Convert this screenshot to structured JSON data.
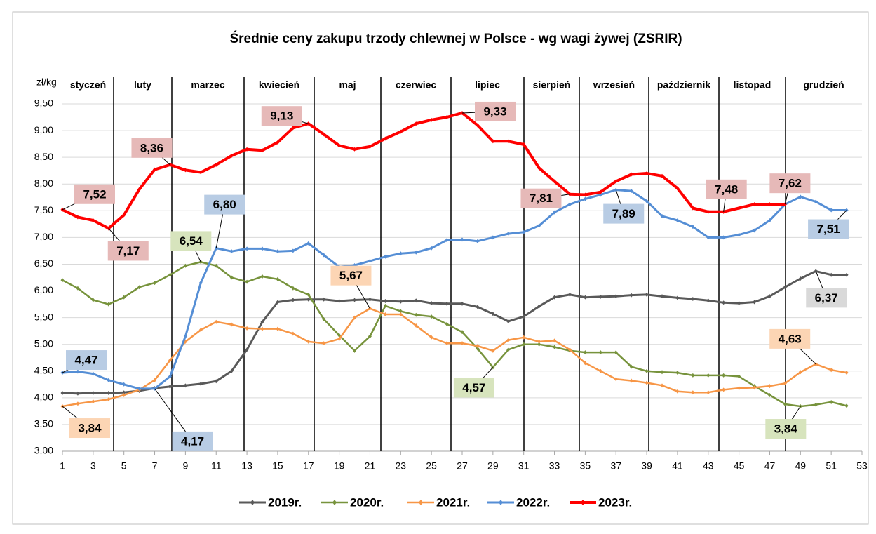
{
  "chart_data": {
    "type": "line",
    "title": "Średnie ceny zakupu trzody chlewnej w Polsce - wg wagi żywej (ZSRIR)",
    "y_label": "zł/kg",
    "months": [
      "styczeń",
      "luty",
      "marzec",
      "kwiecień",
      "maj",
      "czerwiec",
      "lipiec",
      "sierpień",
      "wrzesień",
      "październik",
      "listopad",
      "grudzień"
    ],
    "x": [
      1,
      2,
      3,
      4,
      5,
      6,
      7,
      8,
      9,
      10,
      11,
      12,
      13,
      14,
      15,
      16,
      17,
      18,
      19,
      20,
      21,
      22,
      23,
      24,
      25,
      26,
      27,
      28,
      29,
      30,
      31,
      32,
      33,
      34,
      35,
      36,
      37,
      38,
      39,
      40,
      41,
      42,
      43,
      44,
      45,
      46,
      47,
      48,
      49,
      50,
      51,
      52
    ],
    "xlim": [
      1,
      53
    ],
    "xticks": [
      1,
      3,
      5,
      7,
      9,
      11,
      13,
      15,
      17,
      19,
      21,
      23,
      25,
      27,
      29,
      31,
      33,
      35,
      37,
      39,
      41,
      43,
      45,
      47,
      49,
      51,
      53
    ],
    "ylim": [
      3,
      9.5
    ],
    "yticks": [
      {
        "value": 3,
        "label": "3,00"
      },
      {
        "value": 3.5,
        "label": "3,50"
      },
      {
        "value": 4,
        "label": "4,00"
      },
      {
        "value": 4.5,
        "label": "4,50"
      },
      {
        "value": 5,
        "label": "5,00"
      },
      {
        "value": 5.5,
        "label": "5,50"
      },
      {
        "value": 6,
        "label": "6,00"
      },
      {
        "value": 6.5,
        "label": "6,50"
      },
      {
        "value": 7,
        "label": "7,00"
      },
      {
        "value": 7.5,
        "label": "7,50"
      },
      {
        "value": 8,
        "label": "8,00"
      },
      {
        "value": 8.5,
        "label": "8,50"
      },
      {
        "value": 9,
        "label": "9,00"
      },
      {
        "value": 9.5,
        "label": "9,50"
      }
    ],
    "grid": true,
    "legend": "bottom",
    "series": [
      {
        "name": "2019r.",
        "color": "#595959",
        "label_color": "#d9d9d9",
        "values": [
          4.09,
          4.08,
          4.09,
          4.09,
          4.1,
          4.13,
          4.18,
          4.21,
          4.23,
          4.26,
          4.31,
          4.5,
          4.9,
          5.42,
          5.79,
          5.83,
          5.84,
          5.84,
          5.81,
          5.83,
          5.84,
          5.81,
          5.8,
          5.82,
          5.77,
          5.76,
          5.76,
          5.7,
          5.57,
          5.43,
          5.52,
          5.71,
          5.88,
          5.93,
          5.88,
          5.89,
          5.9,
          5.92,
          5.93,
          5.9,
          5.87,
          5.85,
          5.82,
          5.78,
          5.77,
          5.79,
          5.9,
          6.07,
          6.23,
          6.37,
          6.3,
          6.3
        ],
        "value_labels": [
          null,
          null,
          null,
          null,
          null,
          null,
          null,
          null,
          null,
          null,
          null,
          null,
          null,
          null,
          null,
          null,
          null,
          null,
          null,
          null,
          null,
          null,
          null,
          null,
          null,
          null,
          null,
          null,
          null,
          null,
          null,
          null,
          null,
          null,
          null,
          null,
          null,
          null,
          null,
          null,
          null,
          null,
          null,
          null,
          null,
          null,
          null,
          null,
          null,
          "6,37",
          null,
          null
        ]
      },
      {
        "name": "2020r.",
        "color": "#77933c",
        "label_color": "#d7e4bd",
        "values": [
          6.2,
          6.05,
          5.83,
          5.75,
          5.88,
          6.07,
          6.15,
          6.3,
          6.47,
          6.54,
          6.47,
          6.25,
          6.17,
          6.27,
          6.22,
          6.05,
          5.93,
          5.47,
          5.17,
          4.88,
          5.15,
          5.72,
          5.62,
          5.55,
          5.52,
          5.38,
          5.23,
          4.92,
          4.57,
          4.9,
          5.0,
          5.0,
          4.95,
          4.88,
          4.85,
          4.85,
          4.85,
          4.58,
          4.5,
          4.48,
          4.47,
          4.42,
          4.42,
          4.42,
          4.4,
          4.22,
          4.05,
          3.88,
          3.84,
          3.87,
          3.92,
          3.85
        ],
        "value_labels": [
          null,
          null,
          null,
          null,
          null,
          null,
          null,
          null,
          null,
          "6,54",
          null,
          null,
          null,
          null,
          null,
          null,
          null,
          null,
          null,
          null,
          null,
          null,
          null,
          null,
          null,
          null,
          null,
          null,
          "4,57",
          null,
          null,
          null,
          null,
          null,
          null,
          null,
          null,
          null,
          null,
          null,
          null,
          null,
          null,
          null,
          null,
          null,
          null,
          null,
          "3,84",
          null,
          null,
          null
        ]
      },
      {
        "name": "2021r.",
        "color": "#f79646",
        "label_color": "#fcd5b4",
        "values": [
          3.84,
          3.89,
          3.93,
          3.97,
          4.05,
          4.15,
          4.33,
          4.7,
          5.05,
          5.27,
          5.42,
          5.37,
          5.3,
          5.29,
          5.29,
          5.2,
          5.05,
          5.02,
          5.1,
          5.5,
          5.67,
          5.56,
          5.56,
          5.35,
          5.13,
          5.02,
          5.02,
          4.97,
          4.88,
          5.08,
          5.13,
          5.05,
          5.07,
          4.9,
          4.65,
          4.5,
          4.35,
          4.32,
          4.28,
          4.23,
          4.12,
          4.1,
          4.1,
          4.15,
          4.18,
          4.19,
          4.22,
          4.27,
          4.48,
          4.63,
          4.52,
          4.47
        ],
        "value_labels": [
          "3,84",
          null,
          null,
          null,
          null,
          null,
          null,
          null,
          null,
          null,
          null,
          null,
          null,
          null,
          null,
          null,
          null,
          null,
          null,
          null,
          "5,67",
          null,
          null,
          null,
          null,
          null,
          null,
          null,
          null,
          null,
          null,
          null,
          null,
          null,
          null,
          null,
          null,
          null,
          null,
          null,
          null,
          null,
          null,
          null,
          null,
          null,
          null,
          null,
          null,
          "4,63",
          null,
          null
        ]
      },
      {
        "name": "2022r.",
        "color": "#558ed5",
        "label_color": "#b8cce4",
        "values": [
          4.47,
          4.49,
          4.45,
          4.33,
          4.25,
          4.17,
          4.17,
          4.4,
          5.15,
          6.15,
          6.8,
          6.74,
          6.79,
          6.79,
          6.74,
          6.75,
          6.89,
          6.67,
          6.45,
          6.48,
          6.56,
          6.64,
          6.7,
          6.72,
          6.8,
          6.95,
          6.96,
          6.93,
          7.0,
          7.07,
          7.1,
          7.22,
          7.47,
          7.62,
          7.72,
          7.8,
          7.89,
          7.87,
          7.68,
          7.4,
          7.32,
          7.2,
          7.0,
          7.0,
          7.05,
          7.13,
          7.32,
          7.62,
          7.76,
          7.67,
          7.51,
          7.51
        ],
        "value_labels": [
          "4,47",
          null,
          null,
          null,
          null,
          null,
          "4,17",
          null,
          null,
          null,
          "6,80",
          null,
          null,
          null,
          null,
          null,
          null,
          null,
          null,
          null,
          null,
          null,
          null,
          null,
          null,
          null,
          null,
          null,
          null,
          null,
          null,
          null,
          null,
          null,
          null,
          null,
          "7,89",
          null,
          null,
          null,
          null,
          null,
          null,
          null,
          null,
          null,
          null,
          null,
          null,
          null,
          null,
          "7,51"
        ]
      },
      {
        "name": "2023r.",
        "color": "#ff0000",
        "label_color": "#e6b9b8",
        "values": [
          7.52,
          7.38,
          7.32,
          7.17,
          7.42,
          7.9,
          8.27,
          8.36,
          8.26,
          8.22,
          8.36,
          8.53,
          8.65,
          8.63,
          8.78,
          9.05,
          9.13,
          8.93,
          8.72,
          8.65,
          8.7,
          8.85,
          8.98,
          9.13,
          9.2,
          9.25,
          9.33,
          9.1,
          8.8,
          8.8,
          8.74,
          8.3,
          8.05,
          7.81,
          7.8,
          7.85,
          8.05,
          8.18,
          8.2,
          8.15,
          7.92,
          7.55,
          7.48,
          7.48,
          7.55,
          7.62,
          7.62,
          7.62,
          null,
          null,
          null,
          null
        ],
        "value_labels": [
          "7,52",
          null,
          null,
          "7,17",
          null,
          null,
          null,
          "8,36",
          null,
          null,
          null,
          null,
          null,
          null,
          null,
          null,
          "9,13",
          null,
          null,
          null,
          null,
          null,
          null,
          null,
          null,
          null,
          "9,33",
          null,
          null,
          null,
          null,
          null,
          null,
          "7,81",
          null,
          null,
          null,
          null,
          null,
          null,
          null,
          null,
          null,
          "7,48",
          null,
          null,
          null,
          "7,62",
          null,
          null,
          null,
          null
        ]
      }
    ]
  }
}
